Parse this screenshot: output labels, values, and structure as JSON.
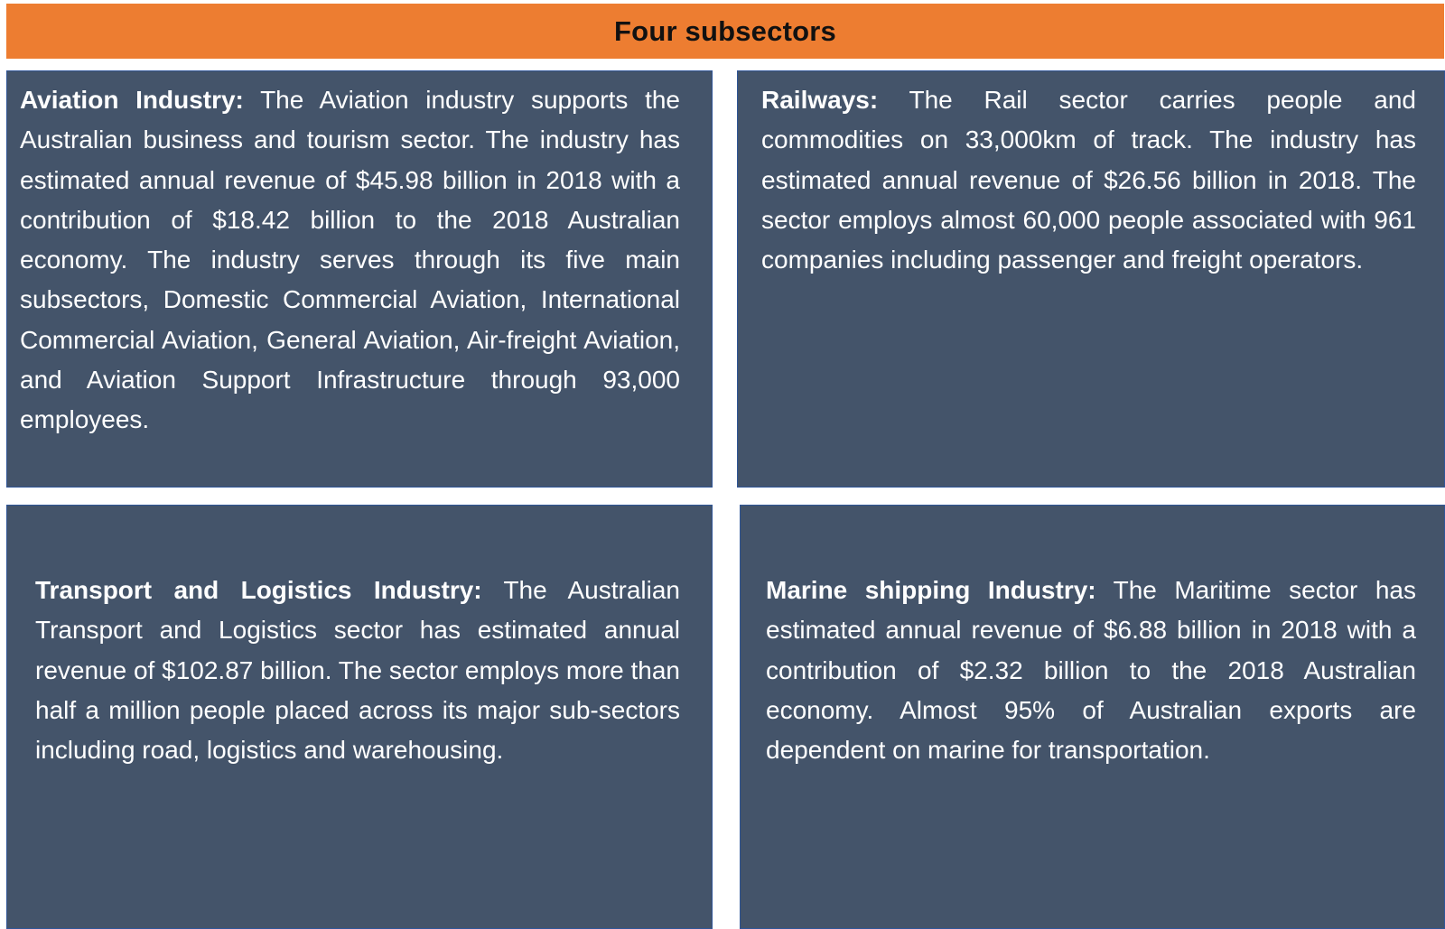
{
  "header": {
    "title": "Four subsectors",
    "color": "#ED7D31"
  },
  "box_color": "#44546A",
  "boxes": {
    "aviation": {
      "heading": "Aviation Industry:",
      "body": " The Aviation industry supports the Australian business and tourism sector. The industry has estimated annual revenue of $45.98 billion in 2018 with a contribution of $18.42 billion to the 2018 Australian economy.  The industry serves through its five main subsectors, Domestic Commercial Aviation, International Commercial Aviation, General Aviation, Air-freight Aviation, and Aviation Support Infrastructure through 93,000 employees."
    },
    "railways": {
      "heading": "Railways:",
      "body": " The Rail sector carries people and commodities on 33,000km of track.  The industry has estimated annual revenue of $26.56 billion in 2018.  The sector employs almost 60,000 people associated with 961 companies including passenger and freight operators."
    },
    "transport": {
      "heading": "Transport and Logistics Industry:",
      "body": " The Australian Transport and Logistics sector has estimated annual revenue of $102.87 billion. The sector employs more than half a million people placed across its major sub-sectors including road, logistics and warehousing."
    },
    "marine": {
      "heading": "Marine shipping Industry:",
      "body": " The Maritime sector has estimated annual revenue of $6.88 billion in 2018 with a contribution of $2.32 billion to the 2018 Australian economy. Almost 95% of Australian exports are dependent on marine for transportation."
    }
  }
}
